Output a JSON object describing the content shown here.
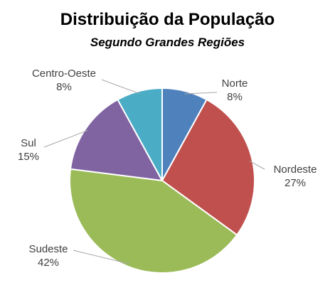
{
  "chart_data": {
    "type": "pie",
    "title": "Distribuição da População",
    "subtitle": "Segundo Grandes Regiões",
    "slices": [
      {
        "label": "Norte",
        "value": 8,
        "value_label": "8%",
        "color": "#4F81BD"
      },
      {
        "label": "Nordeste",
        "value": 27,
        "value_label": "27%",
        "color": "#C0504D"
      },
      {
        "label": "Sudeste",
        "value": 42,
        "value_label": "42%",
        "color": "#9BBB59"
      },
      {
        "label": "Sul",
        "value": 15,
        "value_label": "15%",
        "color": "#8064A2"
      },
      {
        "label": "Centro-Oeste",
        "value": 8,
        "value_label": "8%",
        "color": "#4BACC6"
      }
    ],
    "start_angle_deg": 0,
    "direction": "clockwise",
    "legend": "none",
    "label_style": "outside with leader lines"
  }
}
